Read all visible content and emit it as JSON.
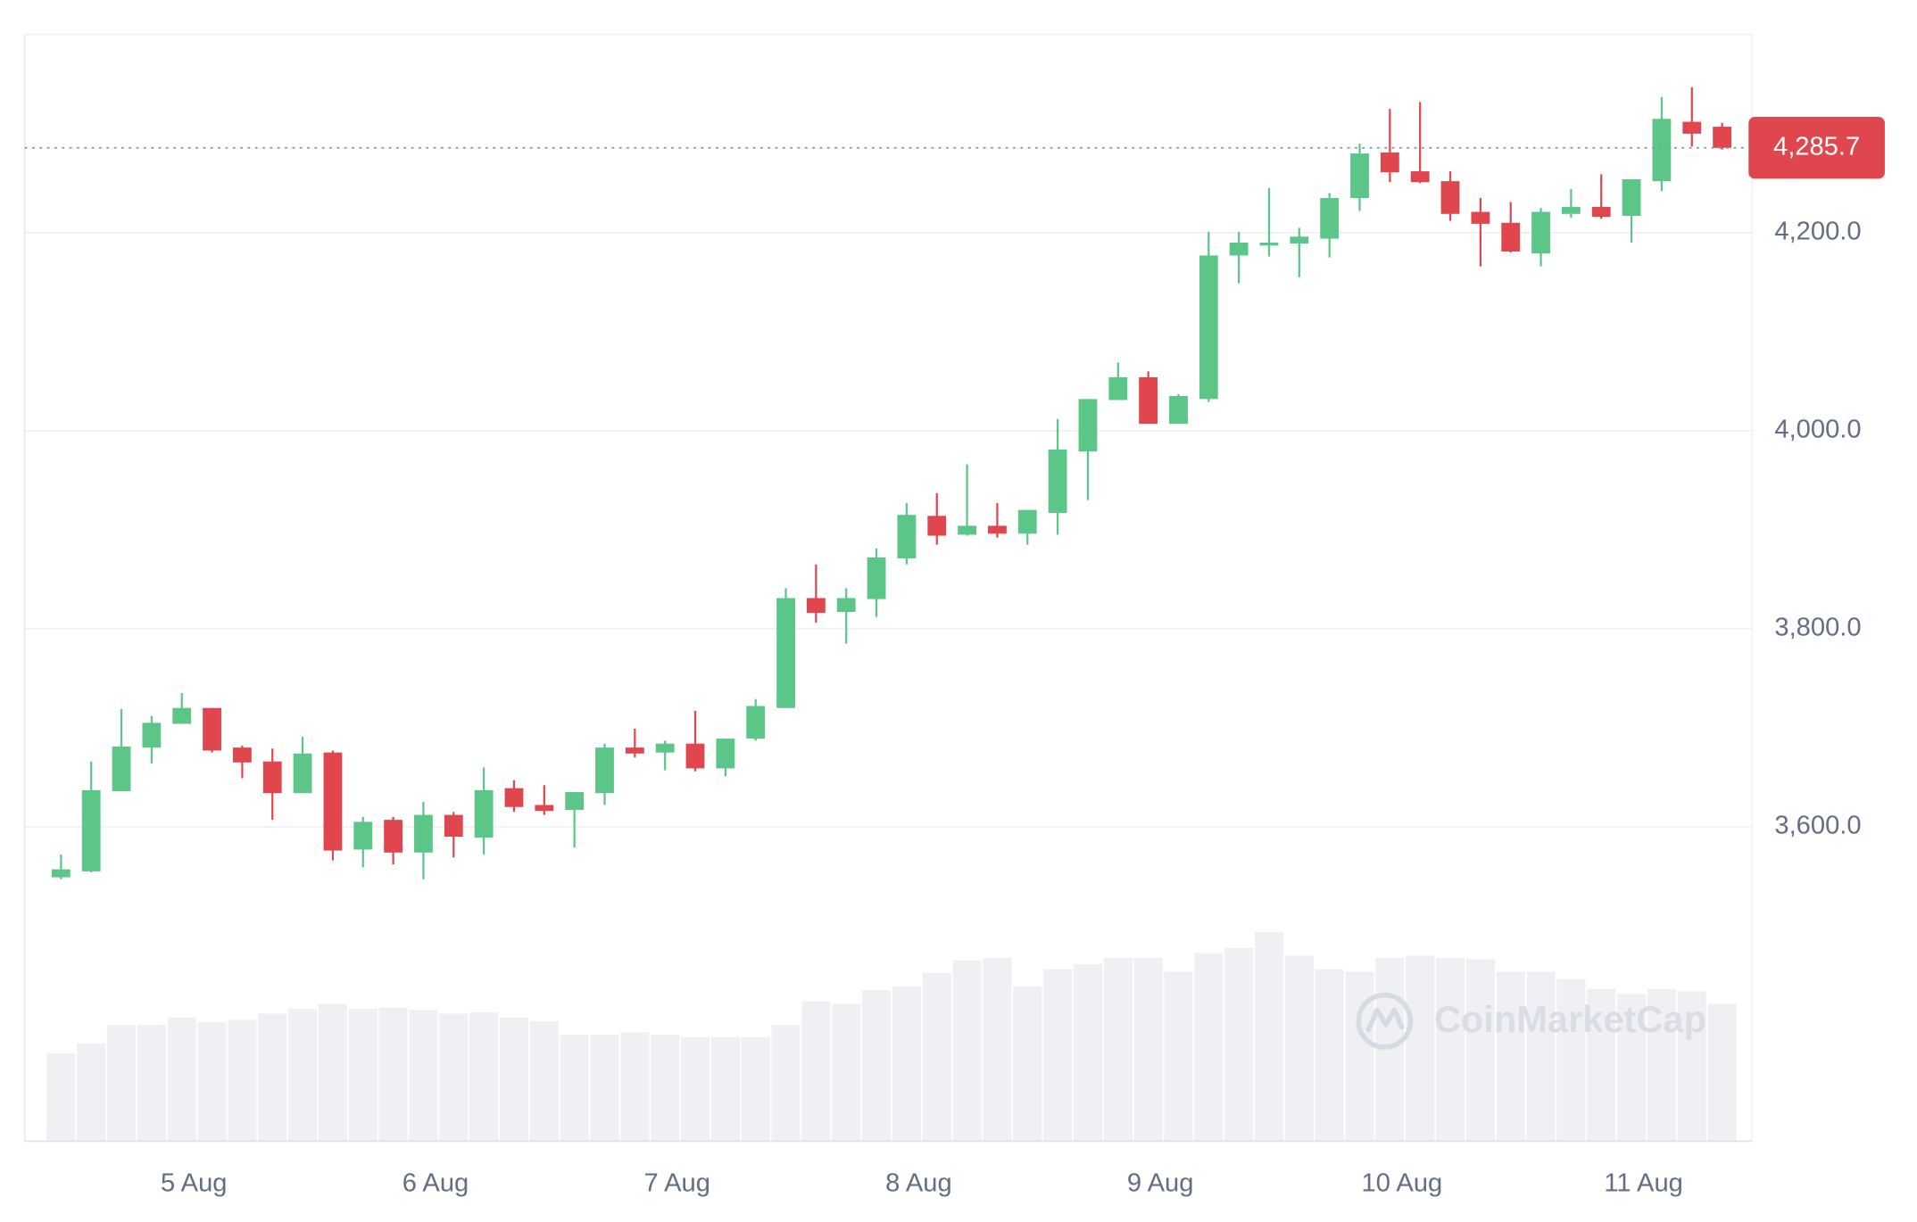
{
  "chart_data": {
    "type": "candlestick",
    "categories": [
      null,
      null,
      null,
      null,
      null,
      null,
      null,
      null,
      null,
      null,
      null,
      null,
      null,
      null,
      null,
      null,
      null,
      null,
      null,
      null,
      null,
      null,
      null,
      null,
      null,
      null,
      null,
      null,
      null,
      null,
      null,
      null,
      null,
      null,
      null,
      null,
      null,
      null,
      null,
      null,
      null,
      null,
      null,
      null,
      null,
      null,
      null,
      null,
      null,
      null,
      null,
      null,
      null,
      null,
      null,
      null
    ],
    "open": [
      3549,
      3555,
      3636,
      3680,
      3704,
      3720,
      3680,
      3666,
      3634,
      3675,
      3577,
      3607,
      3574,
      3612,
      3589,
      3639,
      3622,
      3617,
      3634,
      3680,
      3675,
      3684,
      3659,
      3689,
      3720,
      3831,
      3817,
      3830,
      3871,
      3914,
      3895,
      3904,
      3896,
      3917,
      3979,
      4031,
      4054,
      4007,
      4032,
      4177,
      4187,
      4189,
      4194,
      4235,
      4281,
      4262,
      4252,
      4221,
      4210,
      4179,
      4219,
      4226,
      4217,
      4252,
      4312,
      4307
    ],
    "high": [
      3572,
      3666,
      3719,
      3712,
      3735,
      3720,
      3682,
      3679,
      3691,
      3677,
      3610,
      3610,
      3625,
      3615,
      3660,
      3647,
      3642,
      3635,
      3684,
      3699,
      3687,
      3717,
      3689,
      3729,
      3841,
      3865,
      3841,
      3881,
      3927,
      3937,
      3966,
      3927,
      3920,
      4012,
      4032,
      4069,
      4060,
      4037,
      4201,
      4201,
      4245,
      4205,
      4240,
      4290,
      4325,
      4332,
      4262,
      4235,
      4231,
      4225,
      4244,
      4259,
      4254,
      4337,
      4347,
      4311
    ],
    "low": [
      3547,
      3554,
      3636,
      3664,
      3704,
      3675,
      3649,
      3607,
      3634,
      3566,
      3559,
      3562,
      3547,
      3569,
      3572,
      3615,
      3612,
      3579,
      3622,
      3670,
      3657,
      3656,
      3651,
      3687,
      3720,
      3806,
      3785,
      3812,
      3865,
      3885,
      3894,
      3892,
      3885,
      3895,
      3930,
      4031,
      4007,
      4007,
      4029,
      4149,
      4176,
      4155,
      4175,
      4222,
      4251,
      4250,
      4212,
      4166,
      4180,
      4166,
      4215,
      4214,
      4190,
      4242,
      4287,
      4284
    ],
    "close": [
      3557,
      3637,
      3681,
      3705,
      3720,
      3677,
      3665,
      3634,
      3674,
      3576,
      3605,
      3574,
      3612,
      3590,
      3637,
      3620,
      3616,
      3635,
      3680,
      3674,
      3684,
      3659,
      3689,
      3722,
      3831,
      3816,
      3831,
      3872,
      3915,
      3894,
      3904,
      3896,
      3920,
      3981,
      4032,
      4054,
      4007,
      4035,
      4177,
      4190,
      4190,
      4196,
      4235,
      4280,
      4261,
      4251,
      4219,
      4209,
      4181,
      4221,
      4226,
      4216,
      4254,
      4315,
      4300,
      4285.7
    ],
    "volume": [
      71,
      79,
      94,
      94,
      100,
      96,
      98,
      103,
      107,
      111,
      107,
      108,
      106,
      103,
      104,
      100,
      97,
      86,
      86,
      88,
      86,
      84,
      84,
      84,
      94,
      113,
      111,
      122,
      125,
      136,
      146,
      148,
      125,
      139,
      143,
      148,
      148,
      137,
      152,
      156,
      169,
      150,
      139,
      137,
      148,
      150,
      148,
      147,
      137,
      137,
      131,
      123,
      119,
      123,
      121,
      111
    ],
    "volume_lim": [
      0,
      200
    ],
    "up_color": "#5cc689",
    "down_color": "#e0464e",
    "volume_color": "#eff0f4",
    "xlim": [
      -1.2,
      56
    ],
    "xticks": [
      {
        "value": 4.4,
        "label": "5 Aug"
      },
      {
        "value": 12.4,
        "label": "6 Aug"
      },
      {
        "value": 20.4,
        "label": "7 Aug"
      },
      {
        "value": 28.4,
        "label": "8 Aug"
      },
      {
        "value": 36.4,
        "label": "9 Aug"
      },
      {
        "value": 44.4,
        "label": "10 Aug"
      },
      {
        "value": 52.4,
        "label": "11 Aug"
      }
    ],
    "ylim": [
      3282.5,
      4400
    ],
    "yticks": [
      {
        "value": 3600,
        "label": "3,600.0"
      },
      {
        "value": 3800,
        "label": "3,800.0"
      },
      {
        "value": 4000,
        "label": "4,000.0"
      },
      {
        "value": 4200,
        "label": "4,200.0"
      }
    ],
    "grid": true,
    "last_price": {
      "value": 4285.7,
      "label": "4,285.7"
    },
    "watermark": "CoinMarketCap"
  }
}
